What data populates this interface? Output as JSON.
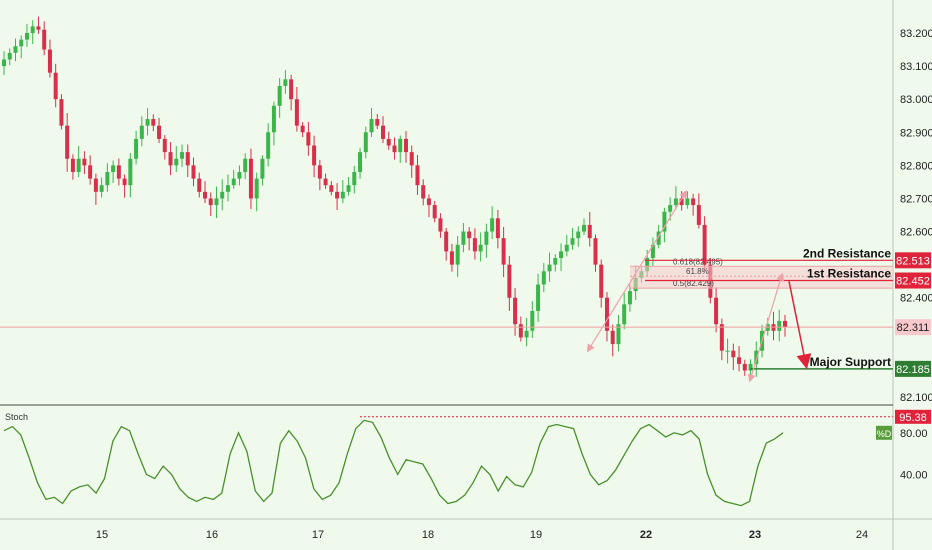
{
  "colors": {
    "background": "#effaed",
    "up": "#3bb54a",
    "down": "#d8304a",
    "resistance": "#e0233a",
    "support": "#2e7d32",
    "fib_line": "#e8a0a0",
    "trend_arrow": "#f0a0a8",
    "stoch": "#4a8f2c",
    "last_price_line": "#f0a0a0",
    "zone_fill": "#f7c8cc"
  },
  "chart_data": [
    {
      "type": "candlestick",
      "title": "",
      "x_tick_labels": [
        "15",
        "16",
        "17",
        "18",
        "19",
        "22",
        "23",
        "24"
      ],
      "y_ticks": [
        "83.200",
        "83.100",
        "83.000",
        "82.900",
        "82.800",
        "82.700",
        "82.600",
        "82.400",
        "82.100"
      ],
      "ylim": [
        82.085,
        83.245
      ],
      "close_series": [
        83.12,
        83.14,
        83.16,
        83.18,
        83.2,
        83.22,
        83.21,
        83.15,
        83.08,
        83.0,
        82.92,
        82.82,
        82.78,
        82.82,
        82.8,
        82.76,
        82.72,
        82.74,
        82.78,
        82.8,
        82.76,
        82.74,
        82.82,
        82.88,
        82.92,
        82.94,
        82.92,
        82.88,
        82.84,
        82.8,
        82.82,
        82.84,
        82.8,
        82.76,
        82.72,
        82.7,
        82.68,
        82.7,
        82.72,
        82.74,
        82.76,
        82.78,
        82.82,
        82.7,
        82.76,
        82.82,
        82.9,
        82.98,
        83.04,
        83.06,
        83.0,
        82.92,
        82.9,
        82.86,
        82.8,
        82.76,
        82.74,
        82.72,
        82.7,
        82.72,
        82.74,
        82.78,
        82.84,
        82.9,
        82.94,
        82.92,
        82.88,
        82.86,
        82.84,
        82.88,
        82.84,
        82.8,
        82.74,
        82.7,
        82.68,
        82.64,
        82.6,
        82.54,
        82.5,
        82.56,
        82.6,
        82.58,
        82.54,
        82.56,
        82.6,
        82.64,
        82.58,
        82.5,
        82.4,
        82.32,
        82.28,
        82.3,
        82.36,
        82.44,
        82.48,
        82.5,
        82.52,
        82.54,
        82.56,
        82.58,
        82.6,
        82.62,
        82.58,
        82.5,
        82.4,
        82.3,
        82.26,
        82.32,
        82.38,
        82.42,
        82.46,
        82.48,
        82.52,
        82.56,
        82.6,
        82.66,
        82.68,
        82.7,
        82.68,
        82.7,
        82.68,
        82.62,
        82.5,
        82.4,
        82.32,
        82.24,
        82.24,
        82.22,
        82.2,
        82.18,
        82.2,
        82.24,
        82.3,
        82.32,
        82.3,
        82.33,
        82.31
      ],
      "day_boundaries_at_index": [
        22,
        52,
        78,
        101,
        127
      ],
      "levels": [
        {
          "label": "2nd Resistance",
          "value": 82.513,
          "value_label": "82.513",
          "type": "resistance"
        },
        {
          "label": "1st Resistance",
          "value": 82.452,
          "value_label": "82.452",
          "type": "resistance"
        },
        {
          "label": "Major Support",
          "value": 82.185,
          "value_label": "82.185",
          "type": "support"
        }
      ],
      "fibonacci": [
        {
          "label": "0.618(82.495)",
          "value": 82.495
        },
        {
          "label": "61.8%",
          "value": 82.465
        },
        {
          "label": "0.5(82.429)",
          "value": 82.429
        }
      ],
      "last_price": {
        "value": 82.311,
        "label": "82.311"
      },
      "forecast": {
        "from": 82.45,
        "to": 82.185,
        "direction": "down"
      },
      "trend_arrows": [
        {
          "from": 82.24,
          "to": 82.72,
          "direction": "up"
        },
        {
          "from": 82.72,
          "to": 82.24,
          "direction": "down"
        },
        {
          "from": 82.15,
          "to": 82.47,
          "direction": "up"
        },
        {
          "from": 82.47,
          "to": 82.15,
          "direction": "down"
        }
      ]
    },
    {
      "type": "line",
      "title": "Stoch",
      "series": [
        {
          "name": "%D",
          "values": [
            82,
            86,
            78,
            56,
            32,
            16,
            18,
            12,
            24,
            28,
            30,
            22,
            36,
            72,
            86,
            82,
            60,
            40,
            36,
            48,
            40,
            26,
            18,
            14,
            18,
            16,
            22,
            60,
            80,
            62,
            24,
            14,
            22,
            70,
            82,
            72,
            56,
            26,
            16,
            20,
            32,
            60,
            84,
            92,
            90,
            76,
            56,
            40,
            54,
            52,
            50,
            36,
            20,
            12,
            14,
            20,
            32,
            48,
            40,
            24,
            38,
            30,
            28,
            42,
            70,
            86,
            88,
            86,
            84,
            60,
            40,
            30,
            34,
            44,
            58,
            72,
            84,
            88,
            82,
            76,
            80,
            78,
            82,
            74,
            40,
            20,
            14,
            12,
            10,
            14,
            48,
            70,
            74,
            80
          ]
        }
      ],
      "ylim": [
        0,
        100
      ],
      "y_ticks": [
        "80.00",
        "40.00"
      ],
      "top_level": {
        "value": 95.38,
        "label": "95.38"
      },
      "badge": "%D"
    }
  ]
}
